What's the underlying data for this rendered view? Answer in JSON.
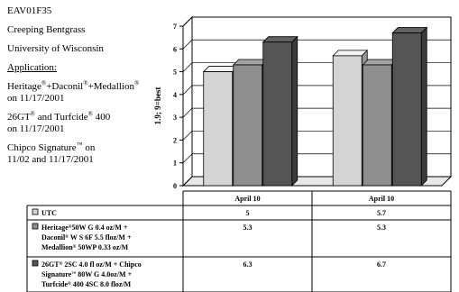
{
  "info": {
    "code": "EAV01F35",
    "crop": "Creeping Bentgrass",
    "institution": "University of Wisconsin",
    "application_label": "Application:",
    "app1_text": "Heritage",
    "app1_b": "+Daconil",
    "app1_c": "+Medallion",
    "app1_date": "on 11/17/2001",
    "app2_text": "26GT",
    "app2_b": " and Turfcide",
    "app2_c": " 400",
    "app2_date": "on 11/17/2001",
    "app3_text": "Chipco Signature",
    "app3_b": " on",
    "app3_date": "11/02 and 11/17/2001",
    "reg": "®",
    "tm": "™"
  },
  "chart_data": {
    "type": "bar",
    "ylabel": "1.9; 9=best",
    "ylim": [
      0,
      7
    ],
    "yticks": [
      "0",
      "1",
      "2",
      "3",
      "4",
      "5",
      "6",
      "7"
    ],
    "categories": [
      "April 10",
      "April 10"
    ],
    "series": [
      {
        "name": "UTC",
        "values": [
          5,
          5.7
        ],
        "color": "#d4d4d4",
        "label_text": "UTC"
      },
      {
        "name": "Heritage 50W G 0.4 oz/M + Daconil W S 6F 5.5 floz/M + Medallion 50WP 0.33 oz/M",
        "values": [
          5.3,
          5.3
        ],
        "color": "#8e8e8e",
        "label_lines": [
          "Heritage",
          "50W G 0.4 oz/M +",
          "Daconil",
          " W S 6F 5.5 floz/M +",
          "Medallion",
          " 50WP 0.33 oz/M"
        ]
      },
      {
        "name": "26GT 2SC 4.0 fl oz/M + Chipco Signature 80W G 4.0oz/M + Turfcide 400 4SC 8.0 floz/M",
        "values": [
          6.3,
          6.7
        ],
        "color": "#555555",
        "label_lines": [
          "26GT",
          " 2SC 4.0 fl oz/M + Chipco",
          "Signature",
          " 80W G 4.0oz/M +",
          "Turfcide",
          " 400 4SC 8.0 floz/M"
        ]
      }
    ],
    "table_values": [
      [
        "5",
        "5.7"
      ],
      [
        "5.3",
        "5.3"
      ],
      [
        "6.3",
        "6.7"
      ]
    ]
  }
}
